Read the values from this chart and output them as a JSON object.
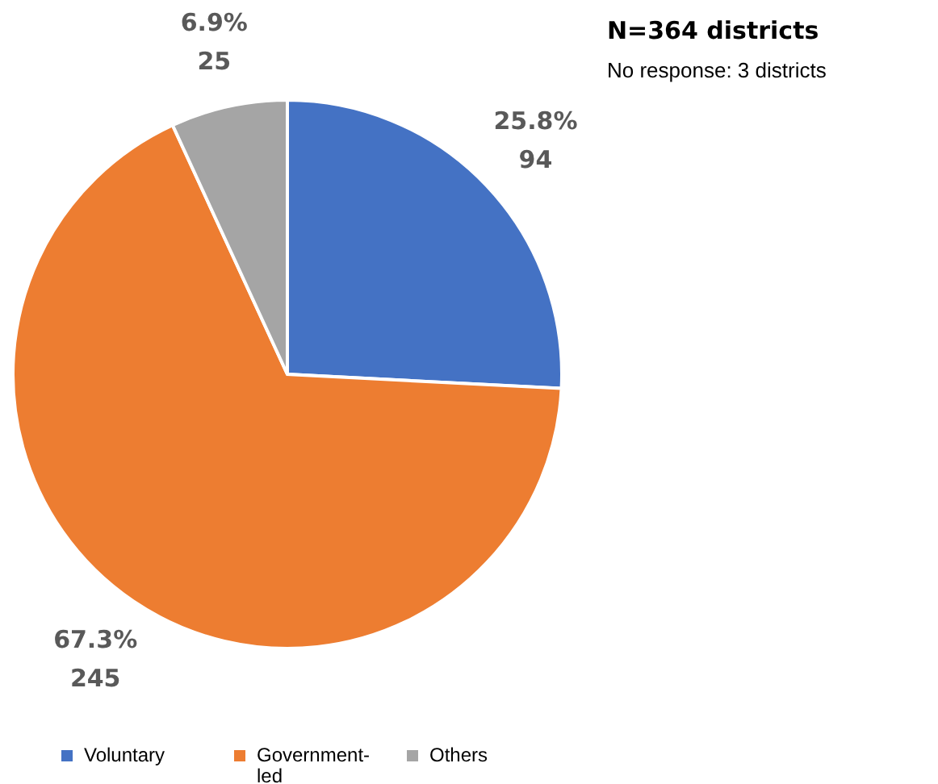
{
  "chart_data": {
    "type": "pie",
    "title": "N=364 districts",
    "annotations": [
      "No response: 3 districts"
    ],
    "categories": [
      "Voluntary",
      "Government-led",
      "Others"
    ],
    "values": [
      94,
      245,
      25
    ],
    "colors": [
      "#4472c4",
      "#ed7d31",
      "#a5a5a5"
    ],
    "value_labels": [
      "25.8%\n94",
      "67.3%\n245",
      "6.9%\n25"
    ],
    "legend": "bottom"
  }
}
